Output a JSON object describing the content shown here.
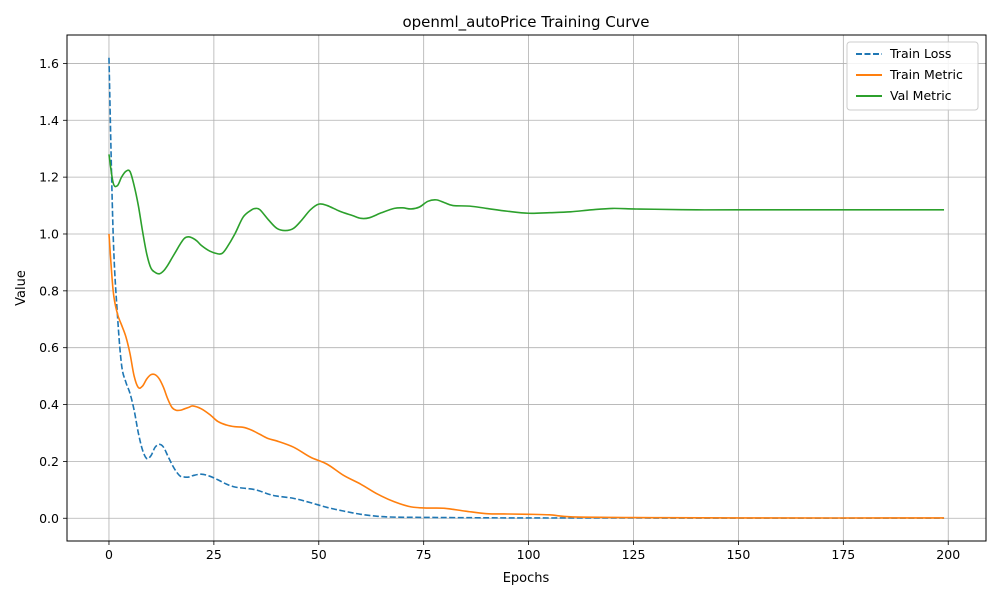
{
  "chart_data": {
    "type": "line",
    "title": "openml_autoPrice Training Curve",
    "xlabel": "Epochs",
    "ylabel": "Value",
    "xlim": [
      -10,
      209
    ],
    "ylim": [
      -0.08,
      1.7
    ],
    "xticks": [
      0,
      25,
      50,
      75,
      100,
      125,
      150,
      175,
      200
    ],
    "yticks": [
      0.0,
      0.2,
      0.4,
      0.6,
      0.8,
      1.0,
      1.2,
      1.4,
      1.6
    ],
    "grid": true,
    "legend_position": "top-right",
    "series": [
      {
        "name": "Train Loss",
        "color": "#1f77b4",
        "style": "dashed",
        "x": [
          0,
          1,
          2,
          3,
          4,
          5,
          6,
          7,
          8,
          9,
          10,
          11,
          12,
          13,
          14,
          15,
          16,
          17,
          18,
          19,
          20,
          22,
          24,
          26,
          28,
          30,
          32,
          35,
          38,
          40,
          44,
          48,
          52,
          56,
          60,
          64,
          68,
          75,
          85,
          100,
          120,
          150,
          199
        ],
        "y": [
          1.62,
          1.0,
          0.72,
          0.54,
          0.48,
          0.44,
          0.38,
          0.3,
          0.24,
          0.21,
          0.22,
          0.25,
          0.26,
          0.25,
          0.22,
          0.19,
          0.165,
          0.148,
          0.145,
          0.145,
          0.15,
          0.155,
          0.148,
          0.135,
          0.12,
          0.11,
          0.106,
          0.1,
          0.085,
          0.078,
          0.07,
          0.055,
          0.038,
          0.025,
          0.014,
          0.007,
          0.004,
          0.003,
          0.002,
          0.001,
          0.001,
          0.0005,
          0.0005
        ]
      },
      {
        "name": "Train Metric",
        "color": "#ff7f0e",
        "style": "solid",
        "x": [
          0,
          1,
          2,
          3,
          4,
          5,
          6,
          7,
          8,
          9,
          10,
          11,
          12,
          13,
          14,
          15,
          16,
          17,
          18,
          19,
          20,
          22,
          24,
          26,
          28,
          30,
          32,
          34,
          36,
          38,
          40,
          44,
          48,
          52,
          56,
          60,
          64,
          68,
          72,
          76,
          80,
          85,
          90,
          95,
          100,
          105,
          110,
          120,
          130,
          150,
          199
        ],
        "y": [
          1.0,
          0.8,
          0.72,
          0.68,
          0.64,
          0.58,
          0.5,
          0.46,
          0.465,
          0.49,
          0.505,
          0.505,
          0.49,
          0.46,
          0.42,
          0.39,
          0.38,
          0.38,
          0.385,
          0.39,
          0.395,
          0.385,
          0.365,
          0.34,
          0.328,
          0.322,
          0.32,
          0.31,
          0.295,
          0.28,
          0.272,
          0.25,
          0.215,
          0.19,
          0.15,
          0.12,
          0.085,
          0.058,
          0.04,
          0.036,
          0.035,
          0.025,
          0.016,
          0.015,
          0.014,
          0.012,
          0.005,
          0.003,
          0.002,
          0.001,
          0.001
        ]
      },
      {
        "name": "Val Metric",
        "color": "#2ca02c",
        "style": "solid",
        "x": [
          0,
          1,
          2,
          3,
          4,
          5,
          6,
          7,
          8,
          9,
          10,
          11,
          12,
          13,
          14,
          15,
          16,
          17,
          18,
          19,
          20,
          21,
          22,
          24,
          26,
          27,
          28,
          30,
          32,
          34,
          35,
          36,
          38,
          40,
          42,
          44,
          46,
          48,
          50,
          52,
          55,
          58,
          60,
          62,
          65,
          68,
          70,
          72,
          74,
          76,
          78,
          80,
          82,
          86,
          90,
          95,
          100,
          105,
          110,
          115,
          120,
          125,
          130,
          140,
          150,
          199
        ],
        "y": [
          1.28,
          1.18,
          1.17,
          1.2,
          1.22,
          1.22,
          1.17,
          1.1,
          1.01,
          0.93,
          0.88,
          0.865,
          0.86,
          0.87,
          0.89,
          0.915,
          0.94,
          0.965,
          0.985,
          0.99,
          0.985,
          0.975,
          0.96,
          0.94,
          0.93,
          0.932,
          0.95,
          1.0,
          1.06,
          1.085,
          1.09,
          1.085,
          1.05,
          1.02,
          1.012,
          1.02,
          1.05,
          1.085,
          1.105,
          1.1,
          1.08,
          1.065,
          1.055,
          1.057,
          1.075,
          1.09,
          1.092,
          1.088,
          1.095,
          1.115,
          1.12,
          1.11,
          1.1,
          1.098,
          1.09,
          1.08,
          1.073,
          1.075,
          1.078,
          1.085,
          1.09,
          1.088,
          1.087,
          1.085,
          1.085,
          1.085
        ]
      }
    ]
  }
}
